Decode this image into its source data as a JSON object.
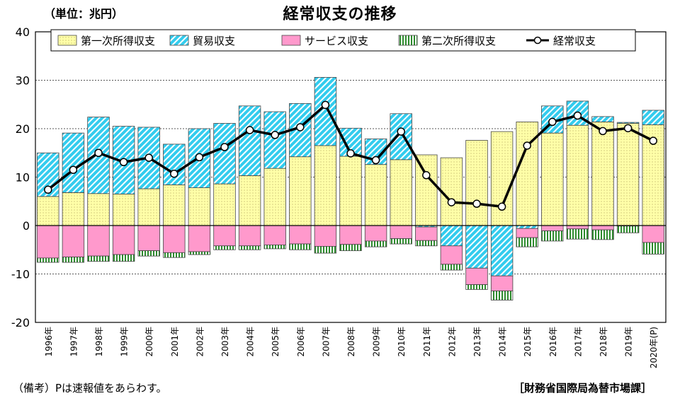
{
  "header": {
    "unit": "（単位：兆円）",
    "title": "経常収支の推移"
  },
  "footer": {
    "note": "（備考）Pは速報値をあらわす。",
    "source": "［財務省国際局為替市場課］"
  },
  "colors": {
    "primary_income": "#ffffa8",
    "trade": "#33ccee",
    "services": "#ff99cc",
    "secondary_income": "#99cc77",
    "current_account_line": "#000000",
    "gridline": "#555555"
  },
  "chart_data": {
    "type": "bar",
    "subtype": "stacked-bar-with-line",
    "title": "経常収支の推移",
    "ylabel": "（単位：兆円）",
    "ylim": [
      -20,
      40
    ],
    "yticks": [
      -20,
      -10,
      0,
      10,
      20,
      30,
      40
    ],
    "grid": "horizontal-dashed",
    "legend_position": "top",
    "categories": [
      "1996年",
      "1997年",
      "1998年",
      "1999年",
      "2000年",
      "2001年",
      "2002年",
      "2003年",
      "2004年",
      "2005年",
      "2006年",
      "2007年",
      "2008年",
      "2009年",
      "2010年",
      "2011年",
      "2012年",
      "2013年",
      "2014年",
      "2015年",
      "2016年",
      "2017年",
      "2018年",
      "2019年",
      "2020年(P)"
    ],
    "series": [
      {
        "name": "第一次所得収支",
        "kind": "bar",
        "color_key": "primary_income",
        "values": [
          6.0,
          6.8,
          6.6,
          6.5,
          7.6,
          8.4,
          7.8,
          8.6,
          10.3,
          11.8,
          14.2,
          16.5,
          14.3,
          12.6,
          13.6,
          14.6,
          14.0,
          17.6,
          19.4,
          21.4,
          19.1,
          20.7,
          21.4,
          21.1,
          20.8
        ]
      },
      {
        "name": "貿易収支",
        "kind": "bar",
        "color_key": "trade",
        "values": [
          9.0,
          12.3,
          15.8,
          14.0,
          12.7,
          8.4,
          12.2,
          12.5,
          14.4,
          11.7,
          11.0,
          14.1,
          5.8,
          5.3,
          9.5,
          -0.3,
          -4.2,
          -8.8,
          -10.4,
          -0.6,
          5.6,
          5.0,
          1.1,
          0.2,
          3.0
        ]
      },
      {
        "name": "サービス収支",
        "kind": "bar",
        "color_key": "services",
        "values": [
          -6.7,
          -6.5,
          -6.3,
          -6.0,
          -5.2,
          -5.6,
          -5.4,
          -4.2,
          -4.2,
          -4.0,
          -3.8,
          -4.3,
          -3.9,
          -3.2,
          -2.7,
          -2.8,
          -3.8,
          -3.4,
          -3.1,
          -1.9,
          -1.1,
          -0.7,
          -0.9,
          -0.1,
          -3.5
        ]
      },
      {
        "name": "第二次所得収支",
        "kind": "bar",
        "color_key": "secondary_income",
        "values": [
          -0.9,
          -1.1,
          -1.1,
          -1.4,
          -1.1,
          -1.0,
          -0.6,
          -0.8,
          -0.8,
          -0.8,
          -1.2,
          -1.4,
          -1.3,
          -1.2,
          -1.1,
          -1.1,
          -1.2,
          -1.0,
          -1.9,
          -1.9,
          -2.1,
          -2.1,
          -2.0,
          -1.4,
          -2.4
        ]
      },
      {
        "name": "経常収支",
        "kind": "line",
        "color_key": "current_account_line",
        "values": [
          7.4,
          11.5,
          15.0,
          13.1,
          14.0,
          10.7,
          14.1,
          16.2,
          19.7,
          18.7,
          20.3,
          24.9,
          14.9,
          13.5,
          19.4,
          10.4,
          4.8,
          4.5,
          3.9,
          16.5,
          21.4,
          22.7,
          19.5,
          20.1,
          17.5
        ]
      }
    ]
  }
}
